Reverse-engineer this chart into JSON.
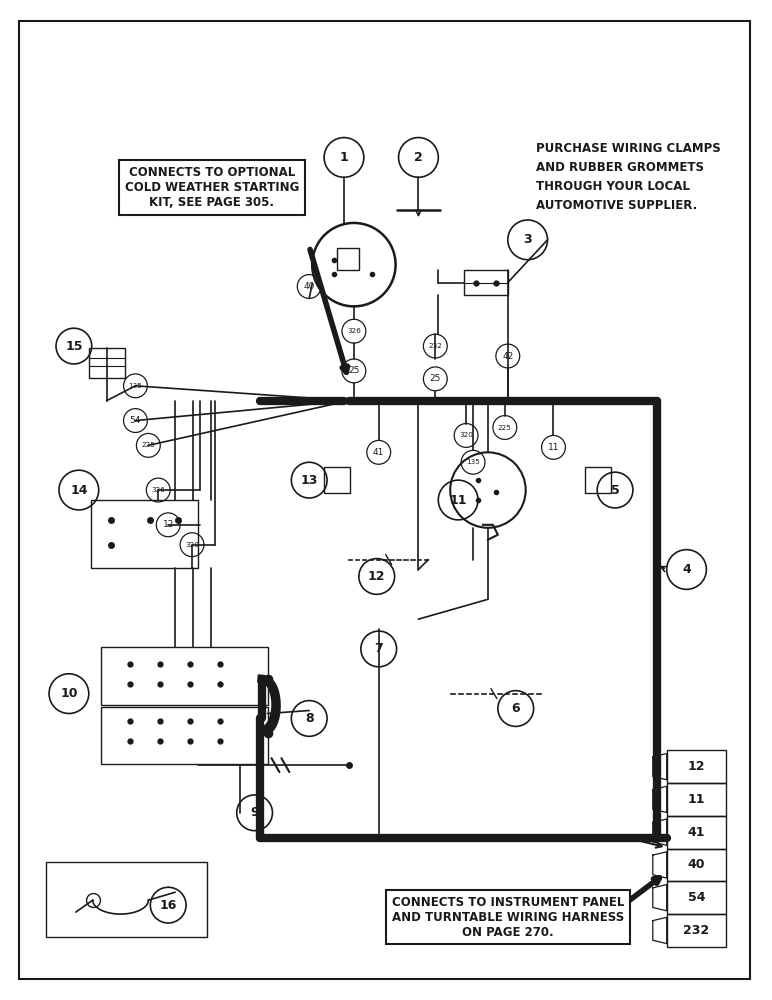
{
  "bg_color": "#ffffff",
  "line_color": "#1a1a1a",
  "annotation_box1": "CONNECTS TO OPTIONAL\nCOLD WEATHER STARTING\nKIT, SEE PAGE 305.",
  "annotation_box2": "CONNECTS TO INSTRUMENT PANEL\nAND TURNTABLE WIRING HARNESS\nON PAGE 270.",
  "annotation_text": "PURCHASE WIRING CLAMPS\nAND RUBBER GROMMETS\nTHROUGH YOUR LOCAL\nAUTOMOTIVE SUPPLIER.",
  "connector_labels": [
    "12",
    "11",
    "41",
    "40",
    "54",
    "232"
  ],
  "fig_w": 7.72,
  "fig_h": 10.0
}
